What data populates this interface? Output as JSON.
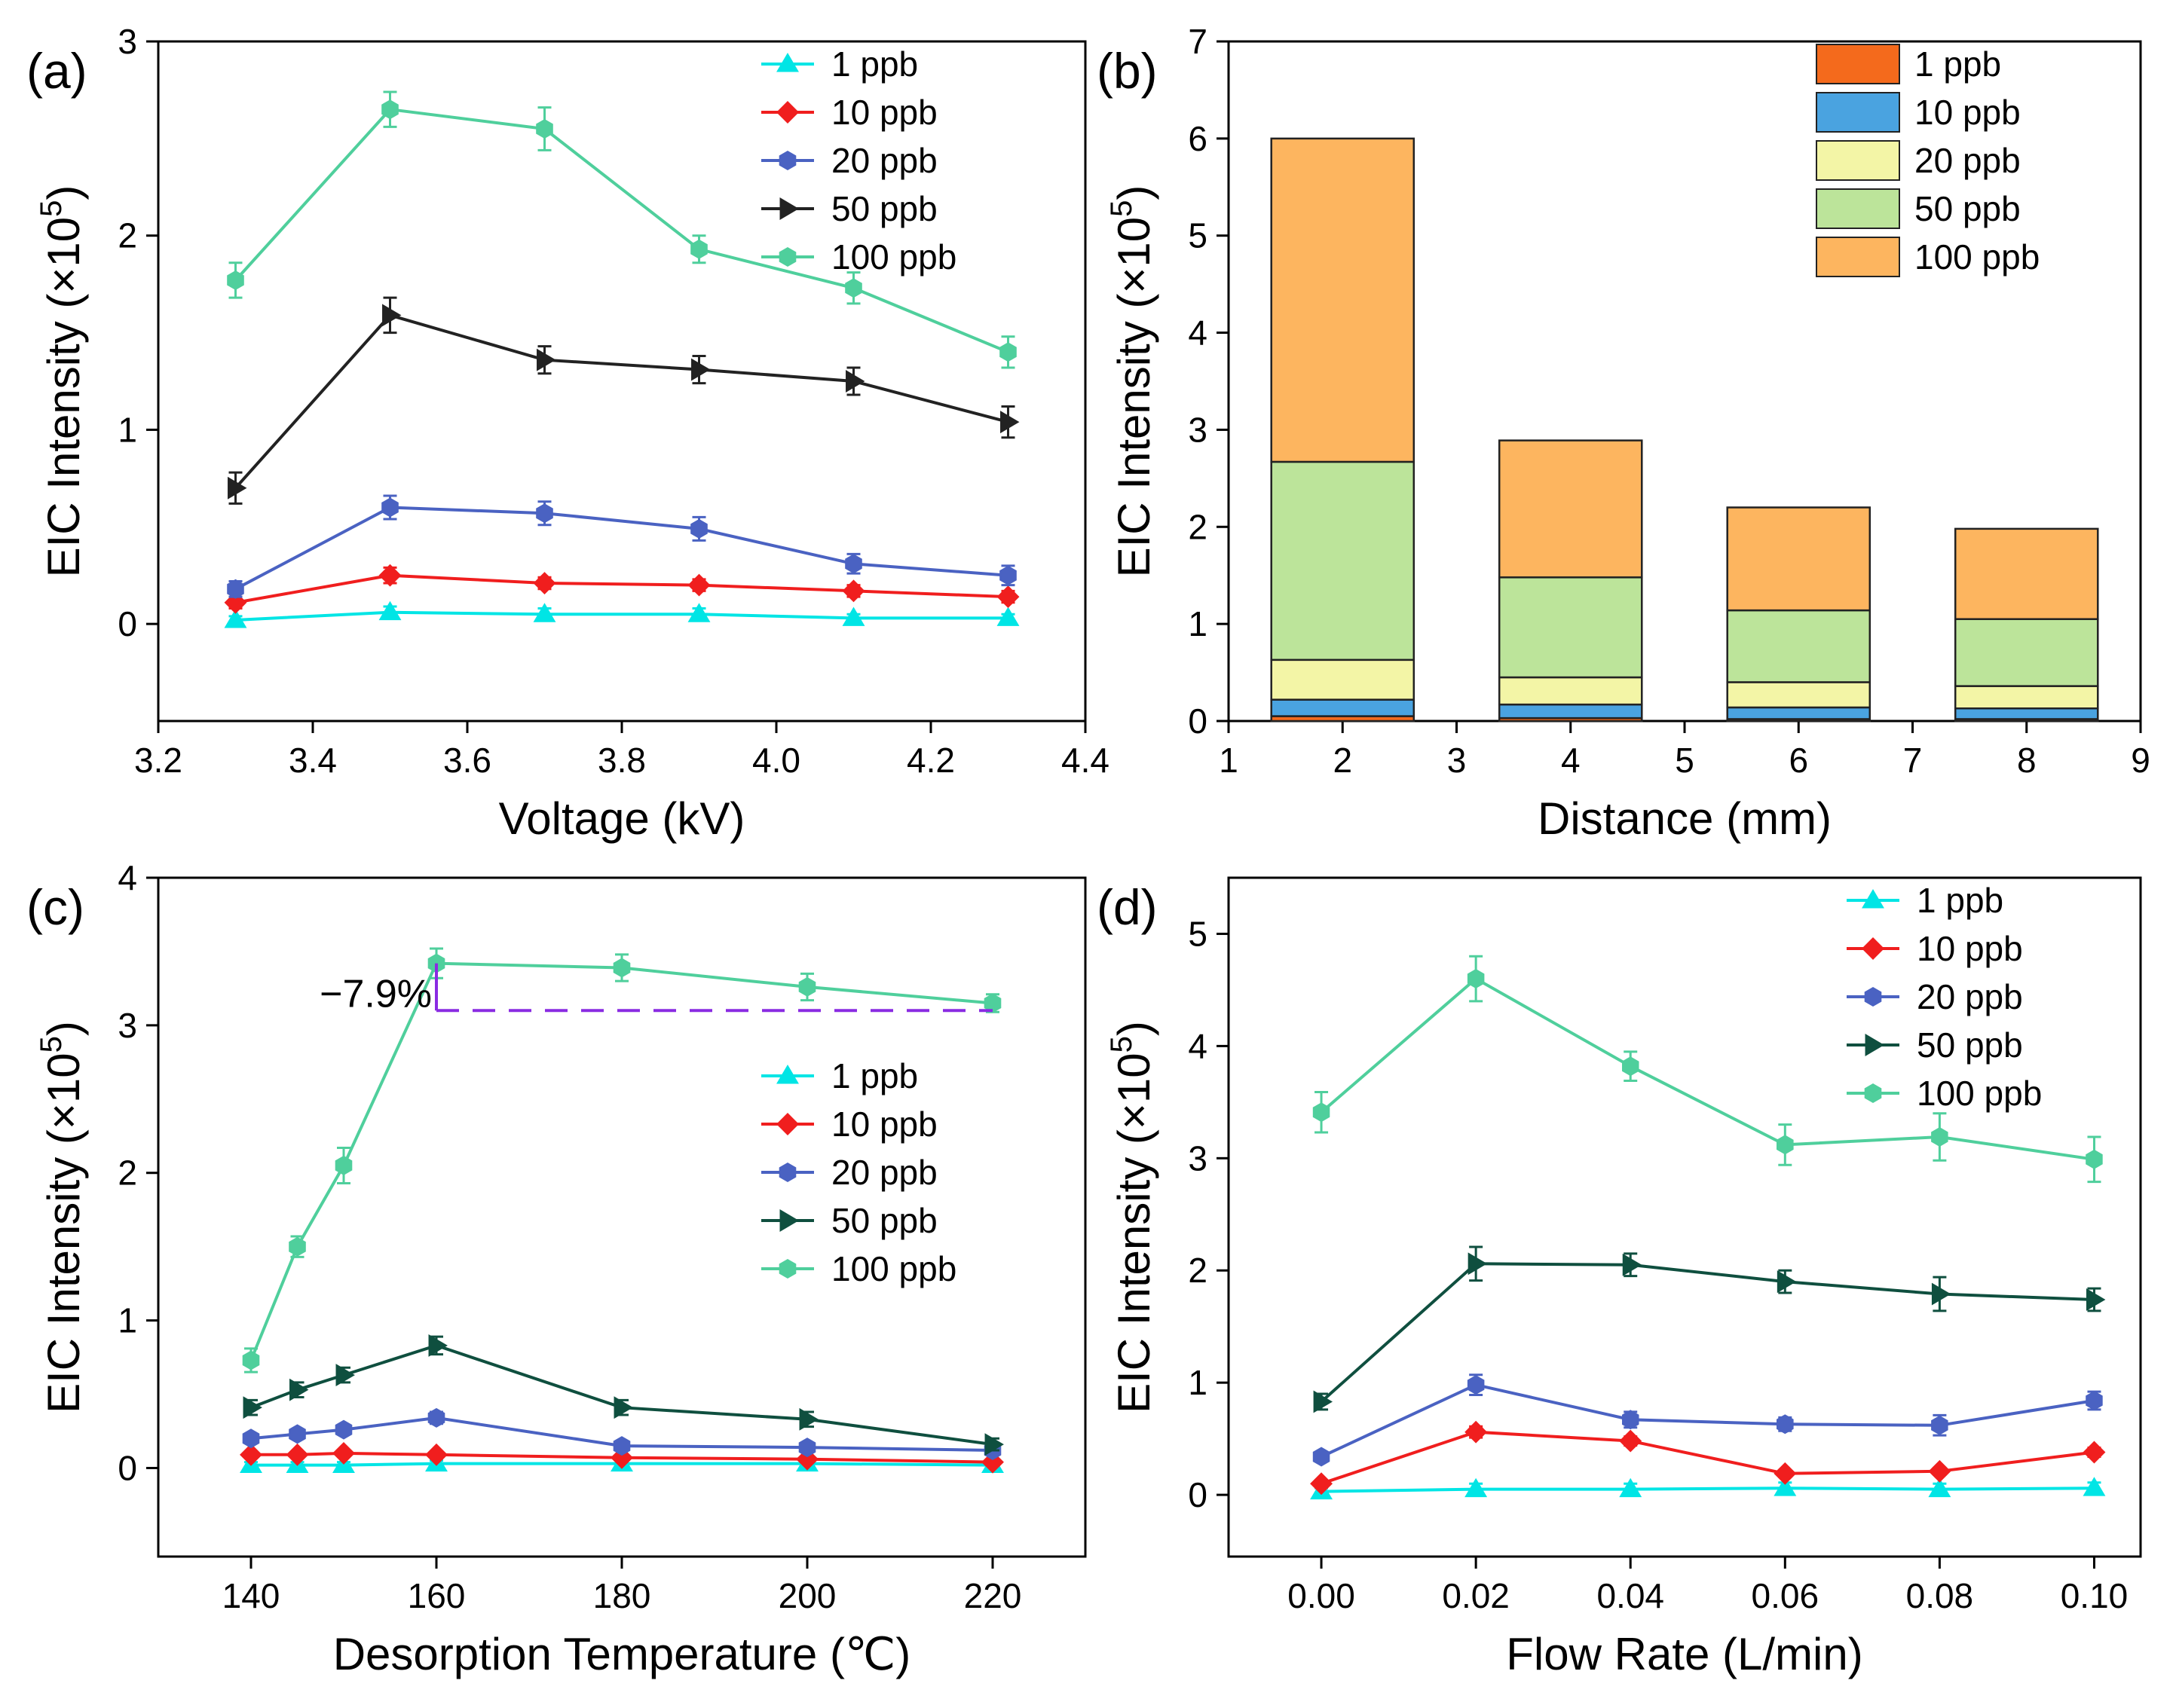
{
  "figure": {
    "panels": [
      "a",
      "b",
      "c",
      "d"
    ]
  },
  "chart_data": [
    {
      "id": "a",
      "type": "line",
      "panel_label": "(a)",
      "xlabel": "Voltage (kV)",
      "ylabel": "EIC Intensity (×10",
      "ylabel_exp": "5",
      "ylabel_close": ")",
      "xlim": [
        3.2,
        4.4
      ],
      "ylim": [
        -0.5,
        3
      ],
      "xticks": [
        3.2,
        3.4,
        3.6,
        3.8,
        4.0,
        4.2,
        4.4
      ],
      "xtick_labels": [
        "3.2",
        "3.4",
        "3.6",
        "3.8",
        "4.0",
        "4.2",
        "4.4"
      ],
      "yticks": [
        0,
        1,
        2,
        3
      ],
      "ytick_labels": [
        "0",
        "1",
        "2",
        "3"
      ],
      "x": [
        3.3,
        3.5,
        3.7,
        3.9,
        4.1,
        4.3
      ],
      "legend_position": "top-right",
      "series": [
        {
          "name": "1 ppb",
          "color": "#00e5e5",
          "marker": "triangle-up",
          "values": [
            0.02,
            0.06,
            0.05,
            0.05,
            0.03,
            0.03
          ],
          "errors": [
            0.02,
            0.03,
            0.03,
            0.03,
            0.02,
            0.02
          ]
        },
        {
          "name": "10 ppb",
          "color": "#f01e1e",
          "marker": "diamond",
          "values": [
            0.11,
            0.25,
            0.21,
            0.2,
            0.17,
            0.14
          ],
          "errors": [
            0.03,
            0.04,
            0.03,
            0.03,
            0.03,
            0.03
          ]
        },
        {
          "name": "20 ppb",
          "color": "#4a62c2",
          "marker": "hexagon",
          "values": [
            0.18,
            0.6,
            0.57,
            0.49,
            0.31,
            0.25
          ],
          "errors": [
            0.04,
            0.06,
            0.06,
            0.06,
            0.05,
            0.05
          ]
        },
        {
          "name": "50 ppb",
          "color": "#222222",
          "marker": "triangle-right",
          "values": [
            0.7,
            1.59,
            1.36,
            1.31,
            1.25,
            1.04
          ],
          "errors": [
            0.08,
            0.09,
            0.07,
            0.07,
            0.07,
            0.08
          ]
        },
        {
          "name": "100 ppb",
          "color": "#4fcf9c",
          "marker": "hexagon",
          "values": [
            1.77,
            2.65,
            2.55,
            1.93,
            1.73,
            1.4
          ],
          "errors": [
            0.09,
            0.09,
            0.11,
            0.07,
            0.08,
            0.08
          ]
        }
      ]
    },
    {
      "id": "b",
      "type": "bar",
      "stacked": true,
      "panel_label": "(b)",
      "xlabel": "Distance (mm)",
      "ylabel": "EIC Intensity (×10",
      "ylabel_exp": "5",
      "ylabel_close": ")",
      "xlim": [
        1,
        9
      ],
      "ylim": [
        0,
        7
      ],
      "xticks": [
        1,
        2,
        3,
        4,
        5,
        6,
        7,
        8,
        9
      ],
      "xtick_labels": [
        "1",
        "2",
        "3",
        "4",
        "5",
        "6",
        "7",
        "8",
        "9"
      ],
      "yticks": [
        0,
        1,
        2,
        3,
        4,
        5,
        6,
        7
      ],
      "ytick_labels": [
        "0",
        "1",
        "2",
        "3",
        "4",
        "5",
        "6",
        "7"
      ],
      "x": [
        2,
        4,
        6,
        8
      ],
      "bar_width": 1.25,
      "legend_position": "top-right",
      "series": [
        {
          "name": "1 ppb",
          "color": "#f46a1c",
          "values": [
            0.05,
            0.03,
            0.02,
            0.02
          ]
        },
        {
          "name": "10 ppb",
          "color": "#4aa3e0",
          "values": [
            0.17,
            0.14,
            0.12,
            0.11
          ]
        },
        {
          "name": "20 ppb",
          "color": "#f3f5a6",
          "values": [
            0.41,
            0.28,
            0.26,
            0.23
          ]
        },
        {
          "name": "50 ppb",
          "color": "#bce49a",
          "values": [
            2.04,
            1.03,
            0.74,
            0.69
          ]
        },
        {
          "name": "100 ppb",
          "color": "#fdb55f",
          "values": [
            3.33,
            1.41,
            1.06,
            0.93
          ]
        }
      ]
    },
    {
      "id": "c",
      "type": "line",
      "panel_label": "(c)",
      "xlabel": "Desorption Temperature (℃)",
      "ylabel": "EIC Intensity (×10",
      "ylabel_exp": "5",
      "ylabel_close": ")",
      "xlim": [
        130,
        230
      ],
      "ylim": [
        -0.6,
        4
      ],
      "xticks": [
        140,
        160,
        180,
        200,
        220
      ],
      "xtick_labels": [
        "140",
        "160",
        "180",
        "200",
        "220"
      ],
      "yticks": [
        0,
        1,
        2,
        3,
        4
      ],
      "ytick_labels": [
        "0",
        "1",
        "2",
        "3",
        "4"
      ],
      "x": [
        140,
        145,
        150,
        160,
        180,
        200,
        220
      ],
      "legend_position": "right",
      "annotation": {
        "text": "−7.9%",
        "x_from": 160,
        "x_to": 220,
        "y_top": 3.42,
        "y_line": 3.1,
        "color": "#8a2be2"
      },
      "series": [
        {
          "name": "1 ppb",
          "color": "#00e5e5",
          "marker": "triangle-up",
          "values": [
            0.02,
            0.02,
            0.02,
            0.03,
            0.03,
            0.03,
            0.02
          ],
          "errors": [
            0.02,
            0.02,
            0.02,
            0.02,
            0.02,
            0.02,
            0.02
          ]
        },
        {
          "name": "10 ppb",
          "color": "#f01e1e",
          "marker": "diamond",
          "values": [
            0.09,
            0.09,
            0.1,
            0.09,
            0.07,
            0.06,
            0.04
          ],
          "errors": [
            0.02,
            0.02,
            0.02,
            0.02,
            0.02,
            0.02,
            0.02
          ]
        },
        {
          "name": "20 ppb",
          "color": "#4a62c2",
          "marker": "hexagon",
          "values": [
            0.2,
            0.23,
            0.26,
            0.34,
            0.15,
            0.14,
            0.12
          ],
          "errors": [
            0.03,
            0.03,
            0.03,
            0.04,
            0.03,
            0.03,
            0.03
          ]
        },
        {
          "name": "50 ppb",
          "color": "#0f4f3f",
          "marker": "triangle-right",
          "values": [
            0.41,
            0.53,
            0.63,
            0.83,
            0.41,
            0.33,
            0.16
          ],
          "errors": [
            0.05,
            0.05,
            0.05,
            0.06,
            0.05,
            0.05,
            0.04
          ]
        },
        {
          "name": "100 ppb",
          "color": "#4fcf9c",
          "marker": "hexagon",
          "values": [
            0.73,
            1.5,
            2.05,
            3.42,
            3.39,
            3.26,
            3.15
          ],
          "errors": [
            0.08,
            0.07,
            0.12,
            0.1,
            0.09,
            0.09,
            0.06
          ]
        }
      ]
    },
    {
      "id": "d",
      "type": "line",
      "panel_label": "(d)",
      "xlabel": "Flow Rate (L/min)",
      "ylabel": "EIC Intensity (×10",
      "ylabel_exp": "5",
      "ylabel_close": ")",
      "xlim": [
        -0.012,
        0.106
      ],
      "ylim": [
        -0.55,
        5.5
      ],
      "xticks": [
        0.0,
        0.02,
        0.04,
        0.06,
        0.08,
        0.1
      ],
      "xtick_labels": [
        "0.00",
        "0.02",
        "0.04",
        "0.06",
        "0.08",
        "0.10"
      ],
      "yticks": [
        0,
        1,
        2,
        3,
        4,
        5
      ],
      "ytick_labels": [
        "0",
        "1",
        "2",
        "3",
        "4",
        "5"
      ],
      "x": [
        0.0,
        0.02,
        0.04,
        0.06,
        0.08,
        0.1
      ],
      "legend_position": "top-right",
      "series": [
        {
          "name": "1 ppb",
          "color": "#00e5e5",
          "marker": "triangle-up",
          "values": [
            0.03,
            0.05,
            0.05,
            0.06,
            0.05,
            0.06
          ],
          "errors": [
            0.03,
            0.05,
            0.05,
            0.05,
            0.05,
            0.05
          ]
        },
        {
          "name": "10 ppb",
          "color": "#f01e1e",
          "marker": "diamond",
          "values": [
            0.1,
            0.56,
            0.48,
            0.19,
            0.21,
            0.38
          ],
          "errors": [
            0.03,
            0.05,
            0.04,
            0.03,
            0.03,
            0.04
          ]
        },
        {
          "name": "20 ppb",
          "color": "#4a62c2",
          "marker": "hexagon",
          "values": [
            0.34,
            0.98,
            0.67,
            0.63,
            0.62,
            0.84
          ],
          "errors": [
            0.04,
            0.09,
            0.07,
            0.06,
            0.09,
            0.08
          ]
        },
        {
          "name": "50 ppb",
          "color": "#0f4f3f",
          "marker": "triangle-right",
          "values": [
            0.83,
            2.06,
            2.05,
            1.9,
            1.79,
            1.74
          ],
          "errors": [
            0.07,
            0.15,
            0.1,
            0.1,
            0.15,
            0.1
          ]
        },
        {
          "name": "100 ppb",
          "color": "#4fcf9c",
          "marker": "hexagon",
          "values": [
            3.41,
            4.6,
            3.82,
            3.12,
            3.19,
            2.99
          ],
          "errors": [
            0.18,
            0.2,
            0.13,
            0.18,
            0.21,
            0.2
          ]
        }
      ]
    }
  ]
}
